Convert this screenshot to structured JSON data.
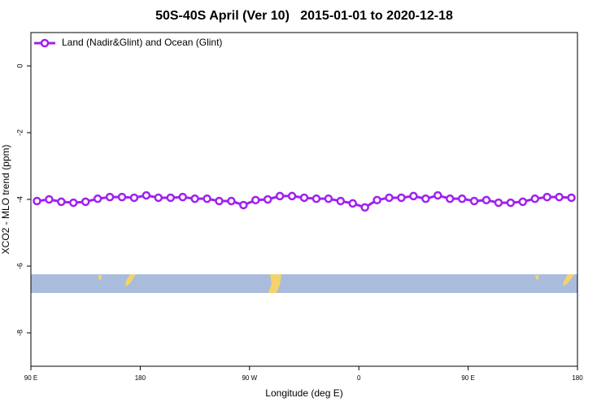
{
  "chart_data": {
    "type": "line",
    "title": "50S-40S April (Ver 10)   2015-01-01 to 2020-12-18",
    "xlabel": "Longitude (deg E)",
    "ylabel": "XCO2 - MLO trend (ppm)",
    "x": [
      95,
      105,
      115,
      125,
      135,
      145,
      155,
      165,
      175,
      185,
      195,
      205,
      215,
      225,
      235,
      245,
      255,
      265,
      275,
      285,
      295,
      305,
      315,
      325,
      335,
      345,
      355,
      365,
      375,
      385,
      395,
      405,
      415,
      425,
      435,
      445,
      455,
      465,
      475,
      485,
      495,
      505,
      515,
      525,
      535
    ],
    "series": [
      {
        "name": "Land (Nadir&Glint) and Ocean (Glint)",
        "color": "#a020f0",
        "values": [
          -4.05,
          -4.0,
          -4.07,
          -4.1,
          -4.07,
          -3.98,
          -3.93,
          -3.93,
          -3.95,
          -3.88,
          -3.95,
          -3.95,
          -3.93,
          -3.98,
          -3.98,
          -4.05,
          -4.05,
          -4.17,
          -4.02,
          -4.0,
          -3.9,
          -3.9,
          -3.95,
          -3.98,
          -3.98,
          -4.05,
          -4.12,
          -4.24,
          -4.02,
          -3.95,
          -3.95,
          -3.9,
          -3.98,
          -3.88,
          -3.98,
          -3.98,
          -4.05,
          -4.02,
          -4.1,
          -4.1,
          -4.07,
          -3.98,
          -3.93,
          -3.93,
          -3.95
        ]
      }
    ],
    "xlim": [
      90,
      540
    ],
    "xticks": [
      {
        "value": 90,
        "label": "90 E"
      },
      180,
      {
        "value": 270,
        "label": "90 W"
      },
      {
        "value": 360,
        "label": "0"
      },
      {
        "value": 450,
        "label": "90 E"
      },
      {
        "value": 540,
        "label": "180"
      }
    ],
    "ylim": [
      -9,
      1
    ],
    "yticks": [
      0,
      -2,
      -4,
      -6,
      -8
    ],
    "legend": "top-left"
  }
}
